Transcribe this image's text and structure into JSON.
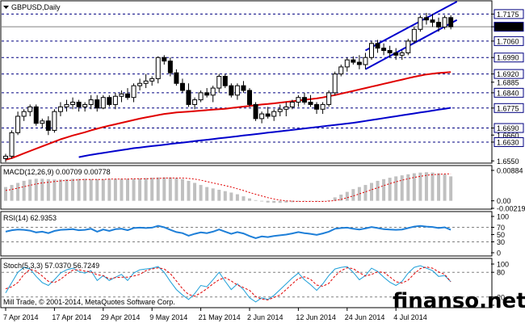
{
  "symbol_label": "GBPUSD,Daily",
  "watermark": "finanso.net",
  "copyright": "Mill Trade, © 2001-2014, MetaQuotes Software Corp.",
  "colors": {
    "candle_body": "#000000",
    "sma_short": "#e00000",
    "sma_long": "#0000cc",
    "channel": "#0000cc",
    "level_lines": "#000080",
    "macd_hist": "#c0c0c0",
    "macd_signal": "#e00000",
    "rsi": "#1e7fd8",
    "stoch_main": "#1e9fd8",
    "stoch_signal": "#e00000",
    "current_price_box": "#000000"
  },
  "chart_data": [
    {
      "type": "candlestick",
      "title": "GBPUSD,Daily",
      "current_price": "1.7121",
      "levels": [
        "1.7175",
        "1.7060",
        "1.6990",
        "1.6920",
        "1.6840",
        "1.6775",
        "1.6690",
        "1.6630"
      ],
      "tick_labels": [
        "1.7175",
        "1.7121",
        "1.7060",
        "1.6990",
        "1.6920",
        "1.6885",
        "1.6840",
        "1.6775",
        "1.6690",
        "1.6660",
        "1.6630",
        "1.6550"
      ],
      "grid": false,
      "ylim": [
        1.6544,
        1.7228
      ],
      "x_labels": [
        "7 Apr 2014",
        "17 Apr 2014",
        "29 Apr 2014",
        "9 May 2014",
        "21 May 2014",
        "2 Jun 2014",
        "12 Jun 2014",
        "24 Jun 2014",
        "4 Jul 2014"
      ],
      "candles": [
        [
          1.656,
          1.658,
          1.6545,
          1.657
        ],
        [
          1.657,
          1.668,
          1.656,
          1.667
        ],
        [
          1.667,
          1.676,
          1.666,
          1.674
        ],
        [
          1.674,
          1.677,
          1.672,
          1.676
        ],
        [
          1.676,
          1.679,
          1.674,
          1.678
        ],
        [
          1.678,
          1.679,
          1.67,
          1.671
        ],
        [
          1.671,
          1.673,
          1.669,
          1.672
        ],
        [
          1.672,
          1.674,
          1.666,
          1.668
        ],
        [
          1.668,
          1.677,
          1.667,
          1.676
        ],
        [
          1.676,
          1.68,
          1.674,
          1.678
        ],
        [
          1.678,
          1.681,
          1.676,
          1.679
        ],
        [
          1.679,
          1.682,
          1.677,
          1.68
        ],
        [
          1.68,
          1.681,
          1.676,
          1.678
        ],
        [
          1.678,
          1.68,
          1.676,
          1.679
        ],
        [
          1.679,
          1.683,
          1.677,
          1.681
        ],
        [
          1.681,
          1.683,
          1.676,
          1.6775
        ],
        [
          1.6775,
          1.683,
          1.677,
          1.682
        ],
        [
          1.682,
          1.683,
          1.678,
          1.679
        ],
        [
          1.679,
          1.684,
          1.677,
          1.6825
        ],
        [
          1.6825,
          1.685,
          1.68,
          1.6835
        ],
        [
          1.6835,
          1.686,
          1.681,
          1.682
        ],
        [
          1.682,
          1.688,
          1.68,
          1.687
        ],
        [
          1.687,
          1.69,
          1.685,
          1.688
        ],
        [
          1.688,
          1.692,
          1.686,
          1.689
        ],
        [
          1.689,
          1.691,
          1.687,
          1.69
        ],
        [
          1.69,
          1.6995,
          1.688,
          1.699
        ],
        [
          1.699,
          1.7,
          1.696,
          1.6975
        ],
        [
          1.6975,
          1.699,
          1.691,
          1.6925
        ],
        [
          1.6925,
          1.694,
          1.687,
          1.688
        ],
        [
          1.688,
          1.69,
          1.684,
          1.685
        ],
        [
          1.685,
          1.688,
          1.678,
          1.679
        ],
        [
          1.679,
          1.682,
          1.677,
          1.681
        ],
        [
          1.681,
          1.685,
          1.68,
          1.684
        ],
        [
          1.684,
          1.686,
          1.682,
          1.683
        ],
        [
          1.683,
          1.687,
          1.68,
          1.686
        ],
        [
          1.686,
          1.692,
          1.684,
          1.691
        ],
        [
          1.691,
          1.692,
          1.686,
          1.687
        ],
        [
          1.687,
          1.688,
          1.682,
          1.683
        ],
        [
          1.683,
          1.688,
          1.681,
          1.687
        ],
        [
          1.687,
          1.689,
          1.684,
          1.685
        ],
        [
          1.685,
          1.686,
          1.678,
          1.679
        ],
        [
          1.679,
          1.68,
          1.672,
          1.673
        ],
        [
          1.673,
          1.676,
          1.671,
          1.675
        ],
        [
          1.675,
          1.678,
          1.673,
          1.674
        ],
        [
          1.674,
          1.677,
          1.672,
          1.676
        ],
        [
          1.676,
          1.679,
          1.674,
          1.677
        ],
        [
          1.677,
          1.68,
          1.674,
          1.678
        ],
        [
          1.678,
          1.681,
          1.677,
          1.68
        ],
        [
          1.68,
          1.683,
          1.678,
          1.682
        ],
        [
          1.682,
          1.684,
          1.679,
          1.68
        ],
        [
          1.68,
          1.683,
          1.678,
          1.679
        ],
        [
          1.679,
          1.68,
          1.675,
          1.677
        ],
        [
          1.677,
          1.68,
          1.675,
          1.679
        ],
        [
          1.679,
          1.685,
          1.678,
          1.684
        ],
        [
          1.684,
          1.693,
          1.683,
          1.692
        ],
        [
          1.692,
          1.696,
          1.691,
          1.695
        ],
        [
          1.695,
          1.699,
          1.693,
          1.698
        ],
        [
          1.698,
          1.6995,
          1.696,
          1.697
        ],
        [
          1.697,
          1.7,
          1.694,
          1.696
        ],
        [
          1.696,
          1.701,
          1.694,
          1.699
        ],
        [
          1.699,
          1.706,
          1.698,
          1.705
        ],
        [
          1.705,
          1.7065,
          1.701,
          1.703
        ],
        [
          1.703,
          1.705,
          1.7,
          1.702
        ],
        [
          1.702,
          1.704,
          1.699,
          1.701
        ],
        [
          1.701,
          1.703,
          1.698,
          1.7
        ],
        [
          1.7,
          1.702,
          1.698,
          1.701
        ],
        [
          1.701,
          1.707,
          1.7,
          1.706
        ],
        [
          1.706,
          1.712,
          1.705,
          1.711
        ],
        [
          1.711,
          1.717,
          1.71,
          1.716
        ],
        [
          1.716,
          1.718,
          1.713,
          1.715
        ],
        [
          1.715,
          1.7175,
          1.712,
          1.714
        ],
        [
          1.714,
          1.716,
          1.71,
          1.712
        ],
        [
          1.712,
          1.717,
          1.711,
          1.716
        ],
        [
          1.716,
          1.717,
          1.711,
          1.7121
        ]
      ],
      "sma_short": [
        1.6555,
        1.6562,
        1.6572,
        1.6582,
        1.6592,
        1.6602,
        1.6612,
        1.6622,
        1.6632,
        1.6642,
        1.665,
        1.6658,
        1.6665,
        1.6672,
        1.668,
        1.6687,
        1.6694,
        1.67,
        1.6706,
        1.6712,
        1.6718,
        1.6724,
        1.673,
        1.6735,
        1.674,
        1.6745,
        1.675,
        1.6753,
        1.6756,
        1.6758,
        1.676,
        1.6762,
        1.6764,
        1.6766,
        1.6768,
        1.677,
        1.6772,
        1.6775,
        1.6778,
        1.6781,
        1.6784,
        1.6787,
        1.679,
        1.6792,
        1.6795,
        1.6798,
        1.6801,
        1.6804,
        1.6807,
        1.681,
        1.6813,
        1.6816,
        1.682,
        1.6825,
        1.683,
        1.6836,
        1.6842,
        1.6848,
        1.6854,
        1.686,
        1.6866,
        1.6872,
        1.6878,
        1.6884,
        1.689,
        1.6896,
        1.6902,
        1.6908,
        1.6913,
        1.6918,
        1.6921,
        1.6924,
        1.6926,
        1.6928
      ],
      "sma_long": [
        null,
        null,
        null,
        null,
        null,
        null,
        null,
        null,
        null,
        null,
        null,
        null,
        1.6566,
        1.6571,
        1.6576,
        1.658,
        1.6584,
        1.6588,
        1.6592,
        1.6596,
        1.66,
        1.6604,
        1.6607,
        1.661,
        1.6613,
        1.6616,
        1.6619,
        1.6622,
        1.6625,
        1.6628,
        1.6631,
        1.6634,
        1.6637,
        1.664,
        1.6643,
        1.6646,
        1.6649,
        1.6652,
        1.6655,
        1.6658,
        1.6661,
        1.6664,
        1.6667,
        1.667,
        1.6673,
        1.6676,
        1.6679,
        1.6682,
        1.6685,
        1.6688,
        1.6691,
        1.6694,
        1.6697,
        1.67,
        1.6703,
        1.6706,
        1.6709,
        1.6712,
        1.6716,
        1.672,
        1.6724,
        1.6728,
        1.6732,
        1.6736,
        1.674,
        1.6744,
        1.6748,
        1.6752,
        1.6756,
        1.676,
        1.6764,
        1.6768,
        1.6772,
        1.6776
      ],
      "channel": {
        "upper": [
          [
            59,
            1.702
          ],
          [
            74,
            1.7228
          ]
        ],
        "lower": [
          [
            59,
            1.694
          ],
          [
            74,
            1.715
          ]
        ]
      }
    },
    {
      "type": "bar",
      "title": "MACD(12,26,9) 0.00709 0.00778",
      "tick_labels": [
        "0.00884",
        "0.00",
        "-0.00219"
      ],
      "ylim": [
        -0.00219,
        0.00884
      ],
      "hist": [
        0.004,
        0.0046,
        0.0052,
        0.0058,
        0.0062,
        0.0064,
        0.0064,
        0.0063,
        0.0062,
        0.0062,
        0.0063,
        0.0064,
        0.0064,
        0.0064,
        0.0063,
        0.0063,
        0.0063,
        0.0064,
        0.0064,
        0.0064,
        0.0064,
        0.0064,
        0.0065,
        0.0066,
        0.0067,
        0.0068,
        0.0068,
        0.0068,
        0.0066,
        0.0063,
        0.0058,
        0.0052,
        0.0046,
        0.004,
        0.0036,
        0.0032,
        0.0028,
        0.0024,
        0.0019,
        0.0013,
        0.0007,
        0.0002,
        -0.0002,
        -0.0005,
        -0.0006,
        -0.0006,
        -0.0005,
        -0.0004,
        -0.0002,
        -0.0001,
        -0.0001,
        -0.0002,
        -0.0001,
        0.0002,
        0.001,
        0.0018,
        0.0026,
        0.0034,
        0.004,
        0.0046,
        0.0052,
        0.0058,
        0.0063,
        0.0067,
        0.0071,
        0.0074,
        0.0077,
        0.008,
        0.0082,
        0.0083,
        0.0082,
        0.008,
        0.0077,
        0.0071
      ],
      "signal": [
        0.003,
        0.0033,
        0.0037,
        0.0041,
        0.0045,
        0.0049,
        0.0052,
        0.0054,
        0.0056,
        0.0058,
        0.0059,
        0.006,
        0.0061,
        0.0062,
        0.0062,
        0.0062,
        0.0062,
        0.0063,
        0.0063,
        0.0063,
        0.0063,
        0.0064,
        0.0064,
        0.0064,
        0.0065,
        0.0065,
        0.0066,
        0.0066,
        0.0066,
        0.0066,
        0.0065,
        0.0063,
        0.006,
        0.0056,
        0.0052,
        0.0048,
        0.0044,
        0.004,
        0.0035,
        0.003,
        0.0024,
        0.0019,
        0.0014,
        0.0009,
        0.0005,
        0.0002,
        0.0,
        -0.0001,
        -0.0002,
        -0.0002,
        -0.0002,
        -0.0002,
        -0.0002,
        -0.0001,
        0.0001,
        0.0004,
        0.0009,
        0.0014,
        0.002,
        0.0026,
        0.0032,
        0.0038,
        0.0044,
        0.005,
        0.0055,
        0.006,
        0.0064,
        0.0068,
        0.0071,
        0.0074,
        0.0076,
        0.0077,
        0.0078,
        0.0078
      ]
    },
    {
      "type": "line",
      "title": "RSI(14) 62.9353",
      "tick_labels": [
        "100",
        "70",
        "50",
        "30",
        "0"
      ],
      "ylim": [
        0,
        100
      ],
      "levels": [
        70,
        30
      ],
      "values": [
        58,
        62,
        64,
        63,
        61,
        56,
        58,
        54,
        60,
        63,
        64,
        65,
        62,
        63,
        66,
        58,
        64,
        60,
        65,
        66,
        62,
        68,
        69,
        68,
        69,
        74,
        70,
        63,
        57,
        54,
        47,
        52,
        56,
        54,
        58,
        64,
        58,
        52,
        57,
        53,
        46,
        40,
        45,
        43,
        46,
        48,
        50,
        53,
        57,
        54,
        52,
        49,
        53,
        58,
        66,
        68,
        69,
        66,
        64,
        67,
        71,
        68,
        65,
        64,
        63,
        64,
        68,
        72,
        74,
        72,
        71,
        68,
        70,
        63
      ]
    },
    {
      "type": "line",
      "title": "Stoch(5,3,3) 57.0370 56.7249",
      "tick_labels": [
        "100",
        "80",
        "20",
        "0"
      ],
      "ylim": [
        0,
        100
      ],
      "levels": [
        80,
        20
      ],
      "main": [
        30,
        55,
        80,
        92,
        88,
        70,
        55,
        48,
        62,
        78,
        86,
        90,
        82,
        78,
        84,
        60,
        72,
        60,
        68,
        75,
        60,
        78,
        86,
        88,
        90,
        94,
        80,
        58,
        38,
        25,
        14,
        28,
        48,
        45,
        62,
        80,
        58,
        38,
        52,
        38,
        18,
        8,
        18,
        14,
        24,
        38,
        52,
        66,
        78,
        62,
        50,
        36,
        52,
        72,
        88,
        92,
        94,
        80,
        62,
        72,
        90,
        82,
        68,
        56,
        48,
        58,
        78,
        92,
        96,
        90,
        84,
        70,
        72,
        57
      ],
      "signal": [
        40,
        45,
        55,
        75,
        87,
        83,
        71,
        58,
        55,
        63,
        75,
        85,
        86,
        83,
        81,
        74,
        72,
        64,
        67,
        68,
        68,
        71,
        75,
        84,
        88,
        91,
        88,
        77,
        59,
        40,
        26,
        22,
        30,
        40,
        52,
        62,
        67,
        59,
        49,
        43,
        36,
        21,
        15,
        13,
        19,
        25,
        38,
        52,
        65,
        69,
        63,
        49,
        46,
        53,
        71,
        84,
        91,
        89,
        79,
        71,
        75,
        81,
        80,
        69,
        57,
        54,
        61,
        76,
        89,
        93,
        90,
        81,
        75,
        57
      ]
    }
  ]
}
